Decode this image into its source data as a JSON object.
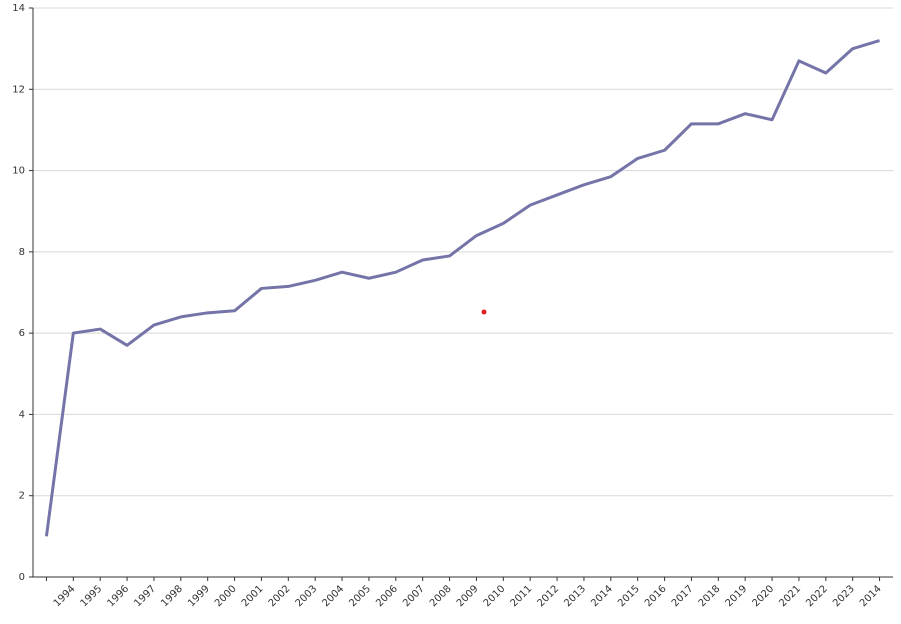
{
  "chart_data": {
    "type": "line",
    "categories": [
      null,
      "1994",
      "1995",
      "1996",
      "1997",
      "1998",
      "1999",
      "2000",
      "2001",
      "2002",
      "2003",
      "2004",
      "2005",
      "2006",
      "2007",
      "2008",
      "2009",
      "2010",
      "2011",
      "2012",
      "2013",
      "2014",
      "2015",
      "2016",
      "2017",
      "2018",
      "2019",
      "2020",
      "2021",
      "2022",
      "2023",
      "2014"
    ],
    "series": [
      {
        "color": "#7474a8",
        "values": [
          1.0,
          6.0,
          6.1,
          5.7,
          6.2,
          6.4,
          6.5,
          6.55,
          7.1,
          7.15,
          7.3,
          7.5,
          7.35,
          7.5,
          7.8,
          7.9,
          8.4,
          8.7,
          9.15,
          9.4,
          9.65,
          9.85,
          10.3,
          10.5,
          11.15,
          11.15,
          11.4,
          11.25,
          12.7,
          12.4,
          13.0,
          13.2
        ]
      }
    ],
    "ylim": [
      0,
      14
    ],
    "yticks": [
      0,
      2,
      4,
      6,
      8,
      10,
      12,
      14
    ],
    "grid": true
  }
}
